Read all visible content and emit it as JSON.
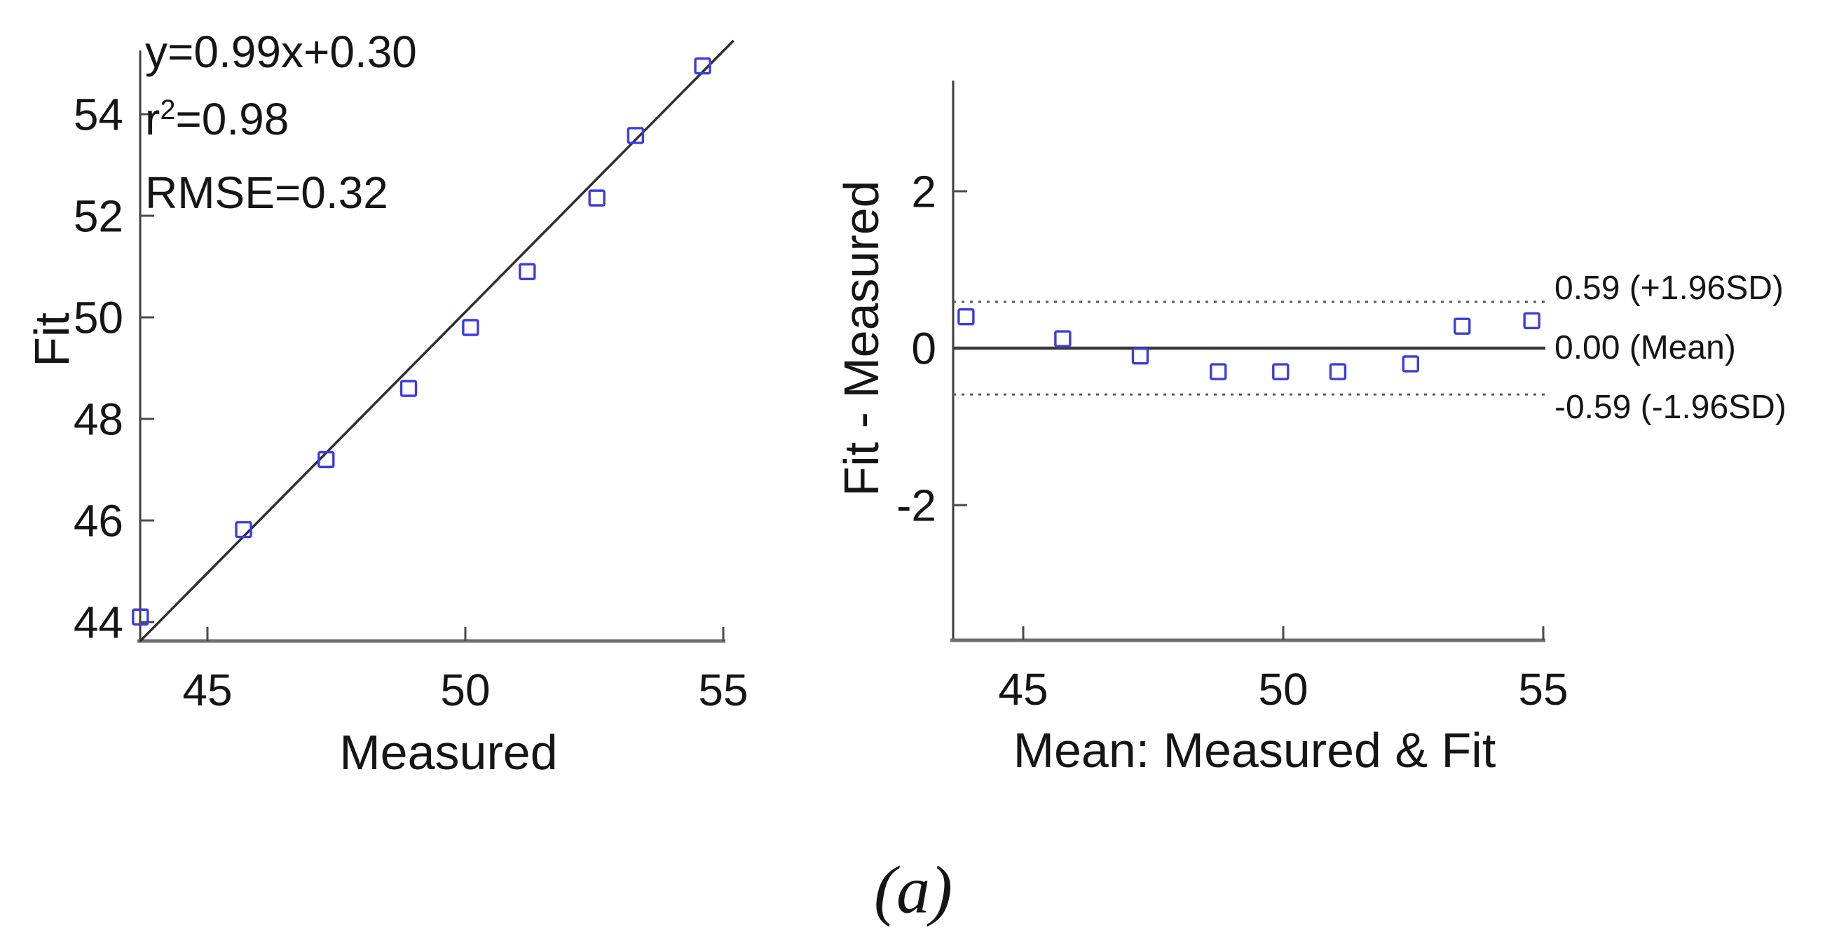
{
  "figure": {
    "caption": "(a)",
    "background": "#ffffff"
  },
  "colors": {
    "marker": "#3c3ce0",
    "fit_line": "#2e2e2e",
    "mean_line": "#3a3a3a",
    "loa_line": "#5a5a5a",
    "axis_vertical": "#3d3d3d",
    "axis_horizontal": "#6e6e6e",
    "tick": "#4a4a4a",
    "text": "#151515"
  },
  "chart_data": [
    {
      "id": "fit-vs-measured",
      "type": "scatter",
      "title": "",
      "xlabel": "Measured",
      "ylabel": "Fit",
      "xlim": [
        43.7,
        55.05
      ],
      "ylim": [
        43.6,
        55.5
      ],
      "xticks": [
        45,
        50,
        55
      ],
      "yticks": [
        44,
        46,
        48,
        50,
        52,
        54
      ],
      "grid": false,
      "legend": "none",
      "marker_shape": "open-square",
      "annotation": {
        "equation": "y=0.99x+0.30",
        "r_base": "r",
        "r_sup": "2",
        "r_eq": "=0.98",
        "rmse": "RMSE=0.32"
      },
      "fit_line": {
        "slope": 0.99,
        "intercept": 0.3
      },
      "fit_line_draw": {
        "x1": 43.69,
        "y1": 43.62,
        "x2": 55.2,
        "y2": 55.45
      },
      "points": [
        {
          "x": 43.7,
          "y": 44.1
        },
        {
          "x": 45.7,
          "y": 45.82
        },
        {
          "x": 47.3,
          "y": 47.2
        },
        {
          "x": 48.9,
          "y": 48.6
        },
        {
          "x": 50.1,
          "y": 49.8
        },
        {
          "x": 51.2,
          "y": 50.9
        },
        {
          "x": 52.55,
          "y": 52.35
        },
        {
          "x": 53.3,
          "y": 53.58
        },
        {
          "x": 54.6,
          "y": 54.95
        }
      ]
    },
    {
      "id": "bland-altman",
      "type": "scatter",
      "title": "",
      "xlabel": "Mean: Measured & Fit",
      "ylabel": "Fit - Measured",
      "xlim": [
        43.65,
        55.05
      ],
      "ylim": [
        -3.7,
        3.4
      ],
      "xticks": [
        45,
        50,
        55
      ],
      "yticks": [
        2,
        0,
        -2
      ],
      "grid": false,
      "legend": "none",
      "marker_shape": "open-square",
      "mean_line": {
        "value": 0.0,
        "label": "0.00 (Mean)",
        "style": "solid"
      },
      "upper_loa": {
        "value": 0.59,
        "label": "0.59 (+1.96SD)",
        "style": "dotted"
      },
      "lower_loa": {
        "value": -0.59,
        "label": "-0.59 (-1.96SD)",
        "style": "dotted"
      },
      "points": [
        {
          "x": 43.9,
          "d": 0.4
        },
        {
          "x": 45.76,
          "d": 0.12
        },
        {
          "x": 47.25,
          "d": -0.1
        },
        {
          "x": 48.75,
          "d": -0.3
        },
        {
          "x": 49.95,
          "d": -0.3
        },
        {
          "x": 51.05,
          "d": -0.3
        },
        {
          "x": 52.45,
          "d": -0.2
        },
        {
          "x": 53.44,
          "d": 0.28
        },
        {
          "x": 54.78,
          "d": 0.35
        }
      ]
    }
  ]
}
